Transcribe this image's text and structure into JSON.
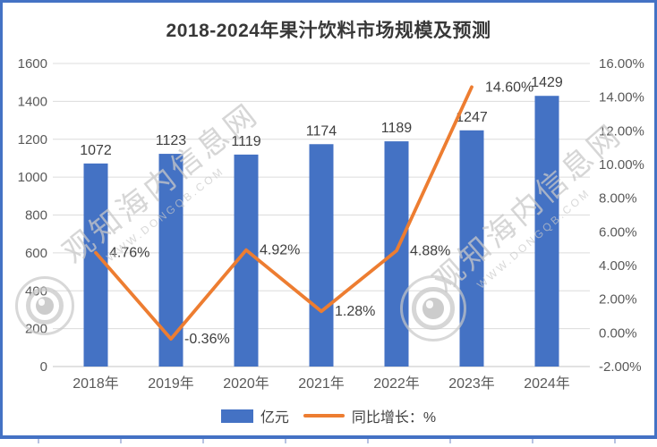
{
  "colors": {
    "bar": "#4472C4",
    "line": "#ED7D31",
    "border": "#4472C4",
    "grid": "#DCDCDC",
    "baseline": "#C6C6C6",
    "axis_text": "#595959",
    "label_text": "#3F3F3F"
  },
  "watermark": {
    "text": "观知海内信息网",
    "subtext": "WWW.DONGQB.COM"
  },
  "chart_data": {
    "type": "bar+line",
    "title": "2018-2024年果汁饮料市场规模及预测",
    "categories": [
      "2018年",
      "2019年",
      "2020年",
      "2021年",
      "2022年",
      "2023年",
      "2024年"
    ],
    "series": [
      {
        "name": "亿元",
        "type": "bar",
        "axis": "left",
        "values": [
          1072,
          1123,
          1119,
          1174,
          1189,
          1247,
          1429
        ],
        "value_labels": [
          "1072",
          "1123",
          "1119",
          "1174",
          "1189",
          "1247",
          "1429"
        ]
      },
      {
        "name": "同比增长：%",
        "type": "line",
        "axis": "right",
        "values": [
          4.76,
          -0.36,
          4.92,
          1.28,
          4.88,
          14.6,
          null
        ],
        "value_labels": [
          "4.76%",
          "-0.36%",
          "4.92%",
          "1.28%",
          "4.88%",
          "14.60%"
        ]
      }
    ],
    "left_axis": {
      "min": 0,
      "max": 1600,
      "step": 200,
      "ticks": [
        "1600",
        "1400",
        "1200",
        "1000",
        "800",
        "600",
        "400",
        "200",
        "0"
      ]
    },
    "right_axis": {
      "min": -2,
      "max": 16,
      "step": 2,
      "ticks": [
        "16.00%",
        "14.00%",
        "12.00%",
        "10.00%",
        "8.00%",
        "6.00%",
        "4.00%",
        "2.00%",
        "0.00%",
        "-2.00%"
      ]
    },
    "grid": true,
    "legend_position": "bottom"
  }
}
